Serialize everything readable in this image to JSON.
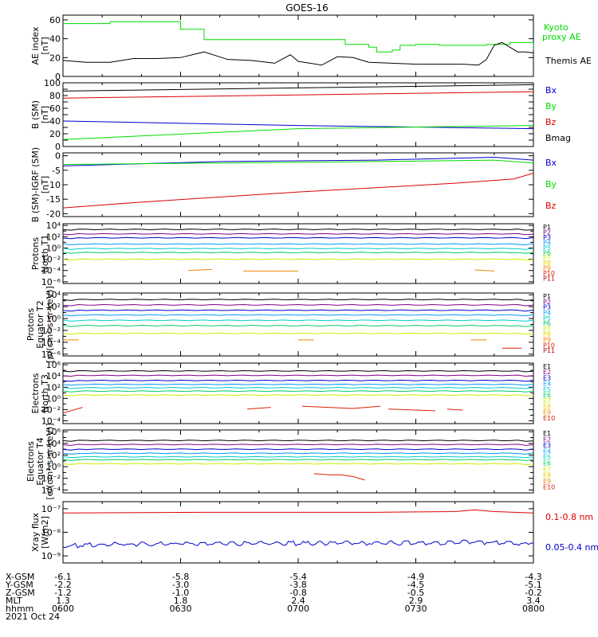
{
  "title": "GOES-16",
  "colors": {
    "black": "#000000",
    "green": "#00dd00",
    "blue": "#0000cc",
    "red": "#dd0000",
    "yellow": "#dddd00",
    "p_channels": [
      "#000000",
      "#880088",
      "#0000cc",
      "#0099ff",
      "#00cccc",
      "#00cc66",
      "#ccee00",
      "#eecc00",
      "#ee8800",
      "#dd2200",
      "#bb0000"
    ],
    "e_channels": [
      "#000000",
      "#880088",
      "#0000cc",
      "#0099ff",
      "#00cccc",
      "#00cc66",
      "#ccee00",
      "#eecc00",
      "#ee8800",
      "#dd2200"
    ]
  },
  "x_axis": {
    "row_labels": [
      "X-GSM",
      "Y-GSM",
      "Z-GSM",
      "MLT",
      "hhmm"
    ],
    "columns": [
      [
        "-6.1",
        "-2.2",
        "-1.2",
        "1.3",
        "0600"
      ],
      [
        "-5.8",
        "-3.0",
        "-1.0",
        "1.8",
        "0630"
      ],
      [
        "-5.4",
        "-3.8",
        "-0.8",
        "2.4",
        "0700"
      ],
      [
        "-4.9",
        "-4.5",
        "-0.5",
        "2.9",
        "0730"
      ],
      [
        "-4.3",
        "-5.1",
        "-0.2",
        "3.4",
        "0800"
      ]
    ],
    "date": "2021 Oct 24",
    "range_minutes": [
      360,
      480
    ]
  },
  "chart_data": [
    {
      "type": "line",
      "id": "ae",
      "ylabel": [
        "AE index",
        "[nT]"
      ],
      "ylim": [
        0,
        65
      ],
      "ticks": [
        "0",
        "20",
        "40",
        "60"
      ],
      "tick_values": [
        0,
        20,
        40,
        60
      ],
      "legend": [
        "Kyoto",
        "proxy AE",
        "Themis AE"
      ],
      "series": [
        {
          "name": "Kyoto proxy AE",
          "color": "green",
          "x": [
            360,
            372,
            384,
            390,
            396,
            420,
            432,
            438,
            440,
            444,
            446,
            450,
            456,
            462,
            468,
            474,
            480
          ],
          "y": [
            56,
            58,
            58,
            50,
            39,
            39,
            34,
            31,
            26,
            28,
            33,
            34,
            33,
            33,
            34,
            36,
            28
          ],
          "style": "step"
        },
        {
          "name": "Themis AE",
          "color": "black",
          "x": [
            360,
            366,
            372,
            378,
            384,
            390,
            396,
            402,
            408,
            414,
            418,
            420,
            426,
            430,
            434,
            438,
            444,
            450,
            456,
            462,
            466,
            468,
            470,
            472,
            474,
            476,
            478,
            480
          ],
          "y": [
            17,
            15,
            15,
            19,
            19,
            20,
            26,
            18,
            17,
            14,
            23,
            16,
            12,
            21,
            20,
            15,
            14,
            13,
            13,
            13,
            12,
            18,
            33,
            36,
            31,
            26,
            26,
            25
          ]
        }
      ]
    },
    {
      "type": "line",
      "id": "bsm",
      "ylabel": [
        "B (SM)",
        "[nT]"
      ],
      "ylim": [
        0,
        100
      ],
      "ticks": [
        "0",
        "10",
        "20",
        "30",
        "40",
        "50",
        "60",
        "70",
        "80",
        "90",
        "100"
      ],
      "tick_values": [
        0,
        10,
        20,
        30,
        40,
        50,
        60,
        70,
        80,
        90,
        100
      ],
      "tick_labels_shown": [
        "0",
        "20",
        "40",
        "60",
        "80",
        "100"
      ],
      "legend": [
        "Bx",
        "By",
        "Bz",
        "Bmag"
      ],
      "series": [
        {
          "name": "Bmag",
          "color": "black",
          "x": [
            360,
            480
          ],
          "y": [
            87,
            97
          ]
        },
        {
          "name": "Bz",
          "color": "red",
          "x": [
            360,
            480
          ],
          "y": [
            76,
            86
          ]
        },
        {
          "name": "Bx",
          "color": "blue",
          "x": [
            360,
            420,
            480
          ],
          "y": [
            40,
            33,
            28
          ]
        },
        {
          "name": "By",
          "color": "green",
          "x": [
            360,
            420,
            480
          ],
          "y": [
            11,
            28,
            33
          ]
        }
      ]
    },
    {
      "type": "line",
      "id": "bigrf",
      "ylabel": [
        "B (SM)-IGRF (SM)",
        "[nT]"
      ],
      "ylim": [
        -21,
        1
      ],
      "ticks": [
        "-20",
        "-15",
        "-10",
        "-5",
        "0"
      ],
      "tick_values": [
        -20,
        -15,
        -10,
        -5,
        0
      ],
      "legend": [
        "Bx",
        "By",
        "Bz"
      ],
      "series": [
        {
          "name": "Bx",
          "color": "blue",
          "x": [
            360,
            400,
            440,
            470,
            480
          ],
          "y": [
            -3.5,
            -2,
            -1.5,
            -0.5,
            -1.5
          ]
        },
        {
          "name": "By",
          "color": "green",
          "x": [
            360,
            400,
            440,
            470,
            480
          ],
          "y": [
            -3,
            -2.5,
            -2,
            -1.5,
            -2.5
          ]
        },
        {
          "name": "Bz",
          "color": "red",
          "x": [
            360,
            380,
            420,
            460,
            475,
            480
          ],
          "y": [
            -18,
            -16,
            -12.5,
            -9.5,
            -8,
            -6
          ]
        }
      ]
    },
    {
      "type": "line",
      "id": "pn",
      "ylabel": [
        "Protons",
        "North T1"
      ],
      "log": true,
      "ylim": [
        -6.3,
        4.3
      ],
      "ticks": [
        "10⁴",
        "10²",
        "10⁰",
        "10⁻²",
        "10⁻⁴",
        "10⁻⁶"
      ],
      "tick_values": [
        4,
        2,
        0,
        -2,
        -4,
        -6
      ],
      "legend": [
        "P1",
        "P2",
        "P3",
        "P4",
        "P5",
        "P6",
        "P7",
        "P8",
        "P9",
        "P10",
        "P11"
      ],
      "levels": [
        3.3,
        2.5,
        1.8,
        0.7,
        -0.1,
        -0.8,
        -2.0
      ],
      "segments": [
        {
          "ch": 8,
          "x": [
            392,
            398
          ],
          "y": [
            -4.0,
            -3.8
          ]
        },
        {
          "ch": 8,
          "x": [
            406,
            420
          ],
          "y": [
            -4.1,
            -4.1
          ]
        },
        {
          "ch": 8,
          "x": [
            465,
            470
          ],
          "y": [
            -3.9,
            -4.1
          ]
        }
      ]
    },
    {
      "type": "line",
      "id": "pe",
      "ylabel": [
        "Protons",
        "Equator T2",
        "[p/(cm²-s-sr-keV)]"
      ],
      "log": true,
      "ylim": [
        -6.3,
        4.3
      ],
      "ticks": [
        "10⁴",
        "10²",
        "10⁰",
        "10⁻²",
        "10⁻⁴",
        "10⁻⁶"
      ],
      "tick_values": [
        4,
        2,
        0,
        -2,
        -4,
        -6
      ],
      "legend": [
        "P1",
        "P2",
        "P3",
        "P4",
        "P5",
        "P6",
        "P7",
        "P8",
        "P9",
        "P10",
        "P11"
      ],
      "levels": [
        3.2,
        2.3,
        1.4,
        0.6,
        -0.3,
        -1.2,
        -2.5
      ],
      "segments": [
        {
          "ch": 8,
          "x": [
            360,
            364
          ],
          "y": [
            -3.6,
            -3.6
          ]
        },
        {
          "ch": 8,
          "x": [
            420,
            424
          ],
          "y": [
            -3.6,
            -3.6
          ]
        },
        {
          "ch": 8,
          "x": [
            464,
            468
          ],
          "y": [
            -3.6,
            -3.6
          ]
        },
        {
          "ch": 9,
          "x": [
            472,
            477
          ],
          "y": [
            -5.0,
            -5.0
          ]
        }
      ]
    },
    {
      "type": "line",
      "id": "en",
      "ylabel": [
        "Electrons",
        "North T3"
      ],
      "log": true,
      "ylim": [
        -4.5,
        6.3
      ],
      "ticks": [
        "10⁶",
        "10⁴",
        "10²",
        "10⁰",
        "10⁻²",
        "10⁻⁴"
      ],
      "tick_values": [
        6,
        4,
        2,
        0,
        -2,
        -4
      ],
      "legend": [
        "E1",
        "E2",
        "E3",
        "E4",
        "E5",
        "E6",
        "E7",
        "E8",
        "E9",
        "E10"
      ],
      "levels": [
        4.9,
        4.1,
        3.2,
        2.5,
        1.9,
        1.3,
        0.6
      ],
      "segments": [
        {
          "ch": 9,
          "x": [
            360,
            365
          ],
          "y": [
            -2.6,
            -1.6
          ]
        },
        {
          "ch": 9,
          "x": [
            407,
            413
          ],
          "y": [
            -1.9,
            -1.6
          ]
        },
        {
          "ch": 9,
          "x": [
            421,
            434,
            441
          ],
          "y": [
            -1.4,
            -1.8,
            -1.4
          ]
        },
        {
          "ch": 9,
          "x": [
            443,
            455
          ],
          "y": [
            -1.9,
            -2.2
          ]
        },
        {
          "ch": 9,
          "x": [
            458,
            462
          ],
          "y": [
            -1.9,
            -2.1
          ]
        }
      ]
    },
    {
      "type": "line",
      "id": "ee",
      "ylabel": [
        "Electrons",
        "Equator T4",
        "[e/(cm²-s-sr-keV)]"
      ],
      "log": true,
      "ylim": [
        -4.5,
        6.3
      ],
      "ticks": [
        "10⁶",
        "10⁴",
        "10²",
        "10⁰",
        "10⁻²",
        "10⁻⁴"
      ],
      "tick_values": [
        6,
        4,
        2,
        0,
        -2,
        -4
      ],
      "legend": [
        "E1",
        "E2",
        "E3",
        "E4",
        "E5",
        "E6",
        "E7",
        "E8",
        "E9",
        "E10"
      ],
      "levels": [
        4.5,
        3.8,
        3.0,
        2.3,
        1.7,
        1.2,
        0.5
      ],
      "segments": [
        {
          "ch": 9,
          "x": [
            424,
            428,
            431,
            434,
            437
          ],
          "y": [
            -1.2,
            -1.4,
            -1.4,
            -1.7,
            -2.3
          ]
        }
      ]
    },
    {
      "type": "line",
      "id": "xray",
      "ylabel": [
        "Xray  flux",
        "[W/m2]"
      ],
      "log": true,
      "ylim": [
        -9.3,
        -6.7
      ],
      "ticks": [
        "10⁻⁷",
        "10⁻⁸",
        "10⁻⁹"
      ],
      "tick_values": [
        -7,
        -8,
        -9
      ],
      "legend": [
        "0.1-0.8 nm",
        "0.05-0.4 nm"
      ],
      "series": [
        {
          "name": "0.1-0.8 nm",
          "color": "red",
          "x": [
            360,
            400,
            440,
            460,
            465,
            470,
            480
          ],
          "y": [
            -7.18,
            -7.15,
            -7.15,
            -7.12,
            -7.05,
            -7.12,
            -7.18
          ]
        },
        {
          "name": "0.05-0.4 nm",
          "color": "blue",
          "x": [
            360,
            365,
            370,
            380,
            390,
            400,
            410,
            420,
            430,
            440,
            450,
            460,
            465,
            470,
            475,
            480
          ],
          "y": [
            -8.6,
            -8.55,
            -8.52,
            -8.5,
            -8.48,
            -8.47,
            -8.47,
            -8.47,
            -8.46,
            -8.46,
            -8.45,
            -8.45,
            -8.4,
            -8.45,
            -8.48,
            -8.45
          ],
          "noise": true
        }
      ]
    }
  ]
}
